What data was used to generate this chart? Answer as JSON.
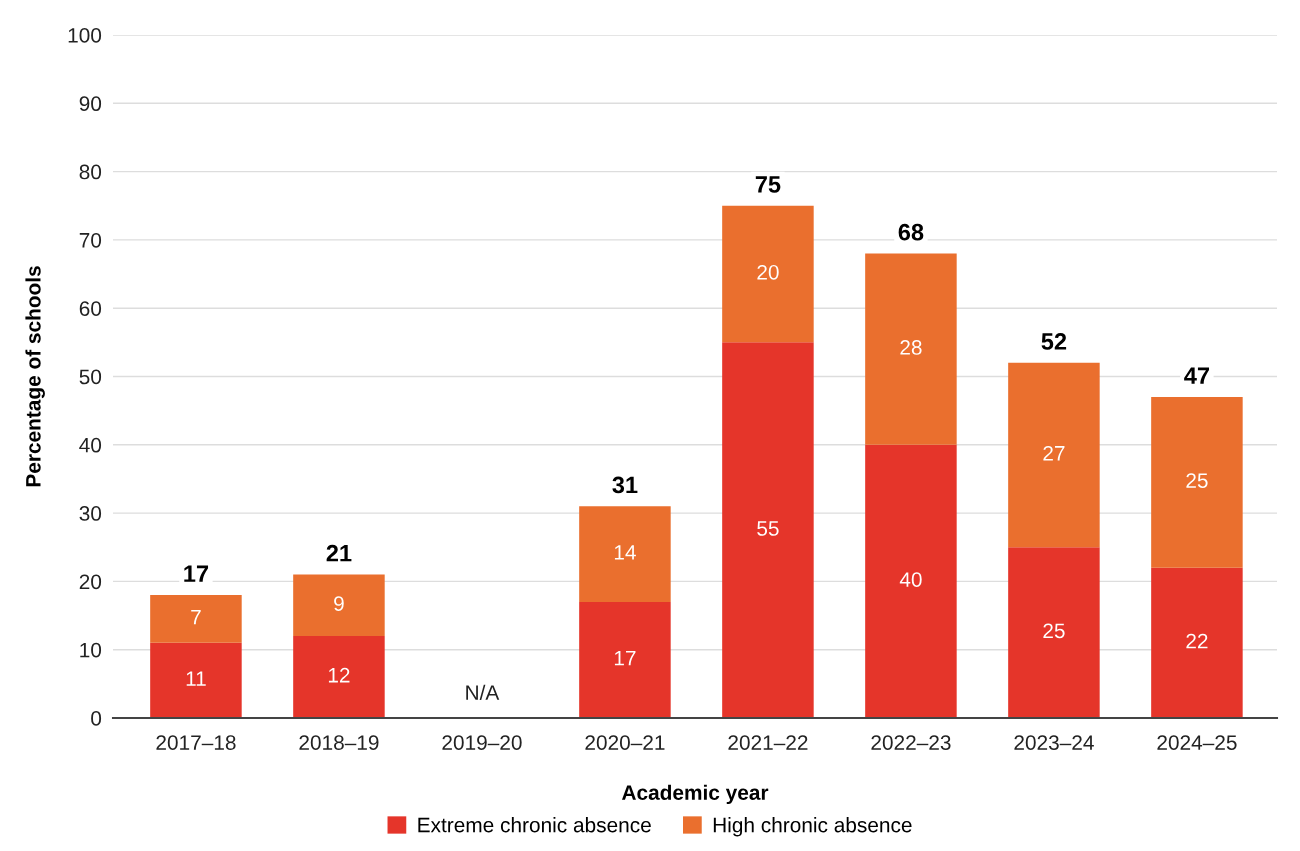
{
  "chart_data": {
    "type": "bar",
    "stacked": true,
    "xlabel": "Academic year",
    "ylabel": "Percentage of schools",
    "categories": [
      "2017–18",
      "2018–19",
      "2019–20",
      "2020–21",
      "2021–22",
      "2022–23",
      "2023–24",
      "2024–25"
    ],
    "series": [
      {
        "name": "Extreme chronic absence",
        "color": "#e5352a",
        "values": [
          11,
          12,
          null,
          17,
          55,
          40,
          25,
          22
        ]
      },
      {
        "name": "High chronic absence",
        "color": "#ea6f2e",
        "values": [
          7,
          9,
          null,
          14,
          20,
          28,
          27,
          25
        ]
      }
    ],
    "totals": [
      "17",
      "21",
      null,
      "31",
      "75",
      "68",
      "52",
      "47"
    ],
    "data_labels": true,
    "ylim": [
      0,
      100
    ],
    "yticks": [
      0,
      10,
      20,
      30,
      40,
      50,
      60,
      70,
      80,
      90,
      100
    ],
    "grid": "y",
    "legend": "bottom",
    "annotations": [
      "N/A"
    ]
  }
}
